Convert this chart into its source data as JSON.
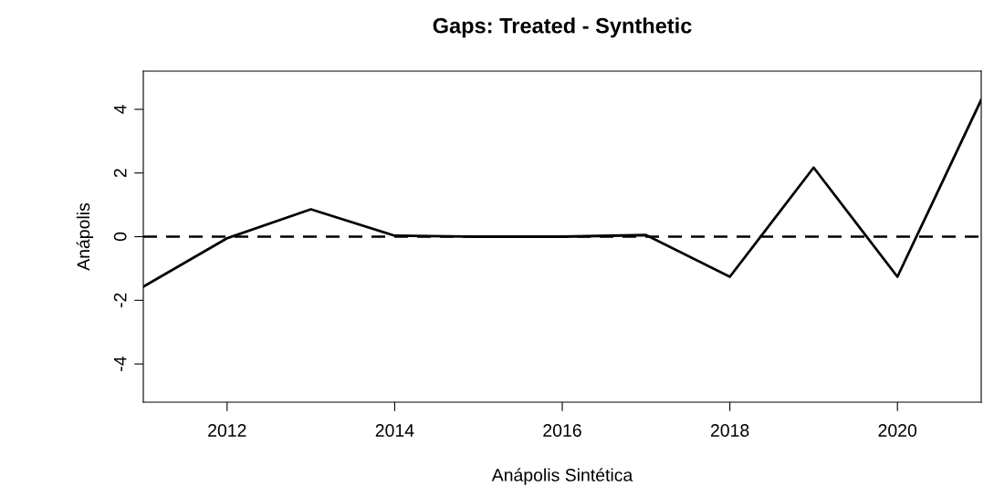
{
  "chart_data": {
    "type": "line",
    "title": "Gaps: Treated - Synthetic",
    "xlabel": "Anápolis Sintética",
    "ylabel": "Anápolis",
    "x": [
      2011,
      2012,
      2013,
      2014,
      2015,
      2016,
      2017,
      2018,
      2019,
      2020,
      2021
    ],
    "series": [
      {
        "color": "#000000",
        "values": [
          -1.57,
          -0.05,
          0.86,
          0.03,
          0.0,
          0.0,
          0.05,
          -1.26,
          2.17,
          -1.26,
          4.3
        ]
      }
    ],
    "xlim": [
      2011,
      2021
    ],
    "xticks": [
      2012,
      2014,
      2016,
      2018,
      2020
    ],
    "ylim": [
      -5.2,
      5.2
    ],
    "yticks": [
      -4,
      -2,
      0,
      2,
      4
    ],
    "ref_lines": [
      {
        "axis": "y",
        "value": 0,
        "color": "#000000",
        "line_style": "dashed"
      }
    ],
    "grid": false,
    "legend": false,
    "marker": "none",
    "line_style": "solid"
  }
}
